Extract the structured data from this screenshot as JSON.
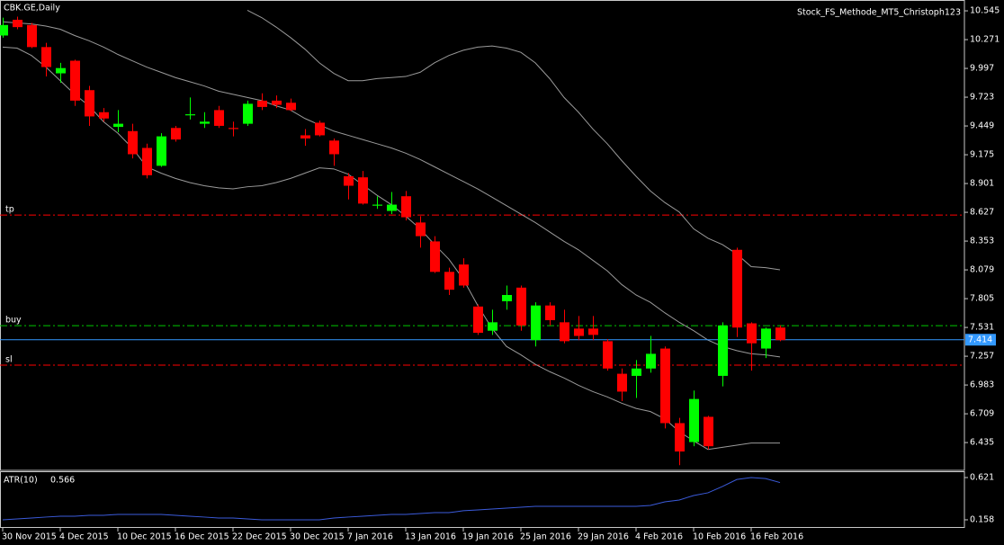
{
  "chart_data": {
    "type": "candlestick",
    "title": "CBK.GE,Daily",
    "indicator_name": "Stock_FS_Methode_MT5_Christoph123",
    "categories": [
      "30 Nov 2015",
      null,
      null,
      null,
      "4 Dec 2015",
      null,
      null,
      null,
      "10 Dec 2015",
      null,
      null,
      null,
      "16 Dec 2015",
      null,
      null,
      null,
      "22 Dec 2015",
      null,
      null,
      null,
      "30 Dec 2015",
      null,
      null,
      null,
      "7 Jan 2016",
      null,
      null,
      null,
      "13 Jan 2016",
      null,
      null,
      null,
      "19 Jan 2016",
      null,
      null,
      null,
      "25 Jan 2016",
      null,
      null,
      null,
      "29 Jan 2016",
      null,
      null,
      null,
      "4 Feb 2016",
      null,
      null,
      null,
      "10 Feb 2016",
      null,
      null,
      null,
      "16 Feb 2016",
      null,
      null
    ],
    "open": [
      10.31,
      10.46,
      10.41,
      10.2,
      9.95,
      10.07,
      9.79,
      9.58,
      9.44,
      9.4,
      9.24,
      9.07,
      9.43,
      9.55,
      9.47,
      9.6,
      9.43,
      9.47,
      9.69,
      9.69,
      9.67,
      9.36,
      9.48,
      9.31,
      8.97,
      8.96,
      8.69,
      8.64,
      8.78,
      8.53,
      8.35,
      8.06,
      8.13,
      7.73,
      7.5,
      7.78,
      7.91,
      7.41,
      7.74,
      7.58,
      7.52,
      7.52,
      7.4,
      7.09,
      7.07,
      7.14,
      7.33,
      6.62,
      6.44,
      6.68,
      7.07,
      8.27,
      7.57,
      7.33,
      7.53
    ],
    "high": [
      10.48,
      10.49,
      10.43,
      10.24,
      10.05,
      10.08,
      9.83,
      9.62,
      9.6,
      9.47,
      9.28,
      9.38,
      9.45,
      9.72,
      9.58,
      9.64,
      9.49,
      9.69,
      9.76,
      9.74,
      9.71,
      9.42,
      9.5,
      9.33,
      9.0,
      9.02,
      8.78,
      8.82,
      8.83,
      8.59,
      8.4,
      8.1,
      8.19,
      7.75,
      7.7,
      7.93,
      7.93,
      7.77,
      7.77,
      7.7,
      7.64,
      7.64,
      7.42,
      7.14,
      7.22,
      7.45,
      7.35,
      6.67,
      6.93,
      6.69,
      7.58,
      8.29,
      7.58,
      7.53,
      7.55
    ],
    "low": [
      10.29,
      10.37,
      10.19,
      9.92,
      9.86,
      9.64,
      9.45,
      9.49,
      9.39,
      9.14,
      8.95,
      9.06,
      9.3,
      9.51,
      9.43,
      9.43,
      9.35,
      9.45,
      9.6,
      9.62,
      9.59,
      9.26,
      9.35,
      9.07,
      8.75,
      8.7,
      8.66,
      8.61,
      8.55,
      8.29,
      8.05,
      7.84,
      7.91,
      7.46,
      7.46,
      7.7,
      7.5,
      7.35,
      7.55,
      7.38,
      7.41,
      7.41,
      7.12,
      6.83,
      6.86,
      7.1,
      6.57,
      6.22,
      6.4,
      6.37,
      6.97,
      7.44,
      7.12,
      7.24,
      7.4
    ],
    "close": [
      10.41,
      10.39,
      10.2,
      10.01,
      10.0,
      9.69,
      9.54,
      9.52,
      9.47,
      9.18,
      8.98,
      9.35,
      9.32,
      9.56,
      9.49,
      9.45,
      9.42,
      9.66,
      9.63,
      9.65,
      9.6,
      9.33,
      9.36,
      9.18,
      8.88,
      8.71,
      8.7,
      8.7,
      8.58,
      8.4,
      8.06,
      7.89,
      7.93,
      7.48,
      7.58,
      7.84,
      7.55,
      7.74,
      7.6,
      7.4,
      7.45,
      7.46,
      7.14,
      6.92,
      7.14,
      7.28,
      6.62,
      6.35,
      6.85,
      6.4,
      7.55,
      7.53,
      7.38,
      7.52,
      7.41
    ],
    "up_color": "#00ff00",
    "down_color": "#ff0000",
    "overlays": [
      {
        "color": "#9a9a9a",
        "values": [
          null,
          null,
          null,
          null,
          null,
          null,
          null,
          null,
          null,
          null,
          null,
          null,
          null,
          null,
          null,
          null,
          null,
          10.55,
          10.48,
          10.39,
          10.29,
          10.18,
          10.05,
          9.95,
          9.88,
          9.88,
          9.9,
          9.91,
          9.92,
          9.96,
          10.05,
          10.12,
          10.17,
          10.2,
          10.21,
          10.19,
          10.15,
          10.05,
          9.9,
          9.72,
          9.58,
          9.42,
          9.28,
          9.12,
          8.97,
          8.83,
          8.72,
          8.63,
          8.47,
          8.38,
          8.32,
          8.23,
          8.11,
          8.1,
          8.08
        ]
      },
      {
        "color": "#9a9a9a",
        "values": [
          10.44,
          10.43,
          10.42,
          10.4,
          10.37,
          10.31,
          10.26,
          10.2,
          10.13,
          10.07,
          10.01,
          9.96,
          9.91,
          9.87,
          9.83,
          9.78,
          9.75,
          9.72,
          9.69,
          9.64,
          9.6,
          9.52,
          9.46,
          9.4,
          9.36,
          9.32,
          9.28,
          9.24,
          9.19,
          9.13,
          9.06,
          8.99,
          8.92,
          8.85,
          8.77,
          8.69,
          8.61,
          8.53,
          8.44,
          8.35,
          8.27,
          8.17,
          8.07,
          7.94,
          7.84,
          7.77,
          7.67,
          7.58,
          7.5,
          7.41,
          7.35,
          7.31,
          7.28,
          7.27,
          7.25
        ]
      },
      {
        "color": "#9a9a9a",
        "values": [
          10.2,
          10.19,
          10.12,
          10.01,
          9.88,
          9.75,
          9.64,
          9.49,
          9.38,
          9.24,
          9.06,
          9.0,
          8.95,
          8.91,
          8.88,
          8.86,
          8.85,
          8.87,
          8.88,
          8.91,
          8.95,
          9.0,
          9.05,
          9.04,
          8.99,
          8.89,
          8.79,
          8.7,
          8.59,
          8.47,
          8.32,
          8.18,
          7.99,
          7.74,
          7.52,
          7.35,
          7.27,
          7.18,
          7.11,
          7.05,
          6.98,
          6.92,
          6.87,
          6.81,
          6.76,
          6.73,
          6.66,
          6.54,
          6.45,
          6.37,
          6.39,
          6.41,
          6.43,
          6.43,
          6.43
        ]
      }
    ],
    "levels": [
      {
        "name": "tp",
        "value": 8.601,
        "color": "#ff0000"
      },
      {
        "name": "buy",
        "value": 7.548,
        "color": "#00c800"
      },
      {
        "name": "sl",
        "value": 7.172,
        "color": "#ff0000"
      }
    ],
    "last_price": 7.414,
    "last_price_color": "#3399ff",
    "ylim": [
      6.179,
      10.631
    ],
    "yticks": [
      6.435,
      6.709,
      6.983,
      7.257,
      7.531,
      7.805,
      8.079,
      8.353,
      8.627,
      8.901,
      9.175,
      9.449,
      9.723,
      9.997,
      10.271,
      10.545
    ],
    "subchart": {
      "type": "line",
      "name": "ATR(10)",
      "last": 0.566,
      "color": "#3b5bdb",
      "values": [
        0.158,
        0.168,
        0.178,
        0.188,
        0.197,
        0.197,
        0.207,
        0.207,
        0.217,
        0.217,
        0.217,
        0.217,
        0.207,
        0.197,
        0.188,
        0.178,
        0.178,
        0.168,
        0.158,
        0.158,
        0.158,
        0.158,
        0.158,
        0.178,
        0.188,
        0.197,
        0.207,
        0.217,
        0.217,
        0.227,
        0.237,
        0.237,
        0.257,
        0.266,
        0.276,
        0.286,
        0.296,
        0.306,
        0.306,
        0.306,
        0.306,
        0.306,
        0.306,
        0.306,
        0.306,
        0.316,
        0.355,
        0.375,
        0.424,
        0.454,
        0.523,
        0.6,
        0.621,
        0.61,
        0.566
      ],
      "ylim": [
        0.079,
        0.68
      ],
      "yticks": [
        0.158,
        0.621
      ]
    }
  }
}
